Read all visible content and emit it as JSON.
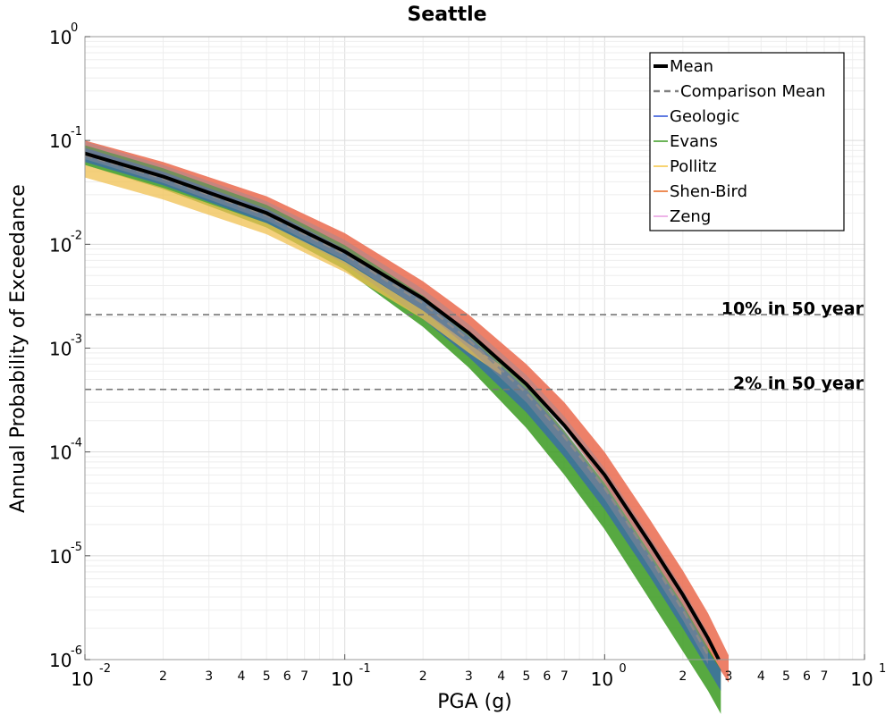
{
  "chart_data": {
    "type": "line",
    "title": "Seattle",
    "xlabel": "PGA (g)",
    "ylabel": "Annual Probability of Exceedance",
    "x_scale": "log",
    "y_scale": "log",
    "xlim": [
      0.01,
      10
    ],
    "ylim": [
      1e-06,
      1
    ],
    "grid": true,
    "legend_position": "top-right",
    "x_major_ticks": [
      {
        "base": "10",
        "exp": "-2"
      },
      {
        "base": "10",
        "exp": "-1"
      },
      {
        "base": "10",
        "exp": "0"
      },
      {
        "base": "10",
        "exp": "1"
      }
    ],
    "x_minor_labels": [
      "2",
      "3",
      "4",
      "5",
      "6",
      "7"
    ],
    "y_major_ticks": [
      {
        "base": "10",
        "exp": "0"
      },
      {
        "base": "10",
        "exp": "-1"
      },
      {
        "base": "10",
        "exp": "-2"
      },
      {
        "base": "10",
        "exp": "-3"
      },
      {
        "base": "10",
        "exp": "-4"
      },
      {
        "base": "10",
        "exp": "-5"
      },
      {
        "base": "10",
        "exp": "-6"
      }
    ],
    "legend": [
      {
        "label": "Mean",
        "color": "#000000",
        "style": "solid-thick"
      },
      {
        "label": "Comparison Mean",
        "color": "#808080",
        "style": "dashed"
      },
      {
        "label": "Geologic",
        "color": "#2b4fd9",
        "style": "solid"
      },
      {
        "label": "Evans",
        "color": "#3a9a20",
        "style": "solid"
      },
      {
        "label": "Pollitz",
        "color": "#f5c542",
        "style": "solid"
      },
      {
        "label": "Shen-Bird",
        "color": "#e8651e",
        "style": "solid"
      },
      {
        "label": "Zeng",
        "color": "#e89ae0",
        "style": "solid"
      }
    ],
    "reference_lines": [
      {
        "label": "10% in 50 year",
        "y": 0.0021
      },
      {
        "label": "2% in 50 year",
        "y": 0.0004
      }
    ],
    "mean": {
      "x": [
        0.01,
        0.02,
        0.05,
        0.1,
        0.2,
        0.3,
        0.5,
        0.7,
        1.0,
        1.5,
        2.0,
        2.5,
        2.75
      ],
      "y": [
        0.075,
        0.045,
        0.02,
        0.0085,
        0.003,
        0.0014,
        0.00045,
        0.00018,
        6e-05,
        1.3e-05,
        4.2e-06,
        1.6e-06,
        1e-06
      ]
    },
    "comparison_mean": {
      "x": [
        0.01,
        0.02,
        0.05,
        0.1,
        0.2,
        0.3,
        0.5,
        0.7,
        1.0,
        1.5,
        2.0,
        2.5
      ],
      "y": [
        0.072,
        0.043,
        0.019,
        0.008,
        0.0027,
        0.0012,
        0.00037,
        0.00014,
        4.5e-05,
        9.5e-06,
        3e-06,
        1.1e-06
      ]
    },
    "bands": [
      {
        "name": "Shen-Bird",
        "color": "#ea6a4e",
        "opacity": 0.85,
        "x": [
          0.01,
          0.02,
          0.05,
          0.1,
          0.2,
          0.3,
          0.5,
          0.7,
          1.0,
          1.5,
          2.0,
          2.5,
          3.0
        ],
        "upper": [
          0.1,
          0.062,
          0.029,
          0.0128,
          0.0044,
          0.0021,
          0.0007,
          0.0003,
          0.0001,
          2.2e-05,
          7.2e-06,
          2.8e-06,
          1.1e-06
        ],
        "lower": [
          0.07,
          0.042,
          0.02,
          0.0088,
          0.0031,
          0.0014,
          0.00045,
          0.00017,
          5e-05,
          1.05e-05,
          3.3e-06,
          1.2e-06,
          6e-07
        ]
      },
      {
        "name": "Evans",
        "color": "#3a9a20",
        "opacity": 0.85,
        "x": [
          0.01,
          0.02,
          0.05,
          0.1,
          0.2,
          0.3,
          0.5,
          0.7,
          1.0,
          1.5,
          2.0,
          2.5,
          2.8
        ],
        "upper": [
          0.09,
          0.054,
          0.024,
          0.0098,
          0.0032,
          0.0014,
          0.00044,
          0.00016,
          5e-05,
          1.05e-05,
          3.4e-06,
          1.3e-06,
          8e-07
        ],
        "lower": [
          0.058,
          0.034,
          0.0145,
          0.0057,
          0.0016,
          0.00065,
          0.00017,
          6e-05,
          1.8e-05,
          3.7e-06,
          1.2e-06,
          5e-07,
          3e-07
        ]
      },
      {
        "name": "Geologic",
        "color": "#2b4fd9",
        "opacity": 0.55,
        "x": [
          0.01,
          0.02,
          0.05,
          0.1,
          0.2,
          0.3,
          0.5,
          0.7,
          1.0,
          1.5,
          2.0,
          2.5,
          2.8
        ],
        "upper": [
          0.085,
          0.05,
          0.022,
          0.009,
          0.0029,
          0.0013,
          0.0004,
          0.00015,
          4.6e-05,
          9.8e-06,
          3.2e-06,
          1.2e-06,
          8e-07
        ],
        "lower": [
          0.062,
          0.037,
          0.016,
          0.0064,
          0.0019,
          0.00082,
          0.00024,
          9e-05,
          2.8e-05,
          6.2e-06,
          2e-06,
          8e-07,
          5e-07
        ]
      },
      {
        "name": "Pollitz",
        "color": "#f0c050",
        "opacity": 0.75,
        "x": [
          0.01,
          0.02,
          0.05,
          0.1,
          0.2,
          0.3,
          0.4
        ],
        "upper": [
          0.058,
          0.035,
          0.016,
          0.0068,
          0.0023,
          0.0011,
          0.00068
        ],
        "lower": [
          0.044,
          0.027,
          0.0125,
          0.0054,
          0.0019,
          0.0009,
          0.00055
        ]
      },
      {
        "name": "Zeng",
        "color": "#9a8a9a",
        "opacity": 0.45,
        "x": [
          0.01,
          0.02,
          0.05,
          0.1,
          0.2,
          0.3,
          0.5,
          0.7,
          1.0,
          1.5,
          2.0,
          2.5
        ],
        "upper": [
          0.098,
          0.058,
          0.026,
          0.011,
          0.0037,
          0.0017,
          0.00055,
          0.00022,
          7e-05,
          1.5e-05,
          4.8e-06,
          1.8e-06
        ],
        "lower": [
          0.066,
          0.039,
          0.017,
          0.007,
          0.0023,
          0.001,
          0.0003,
          0.00011,
          3.5e-05,
          7.5e-06,
          2.4e-06,
          9e-07
        ]
      }
    ]
  }
}
